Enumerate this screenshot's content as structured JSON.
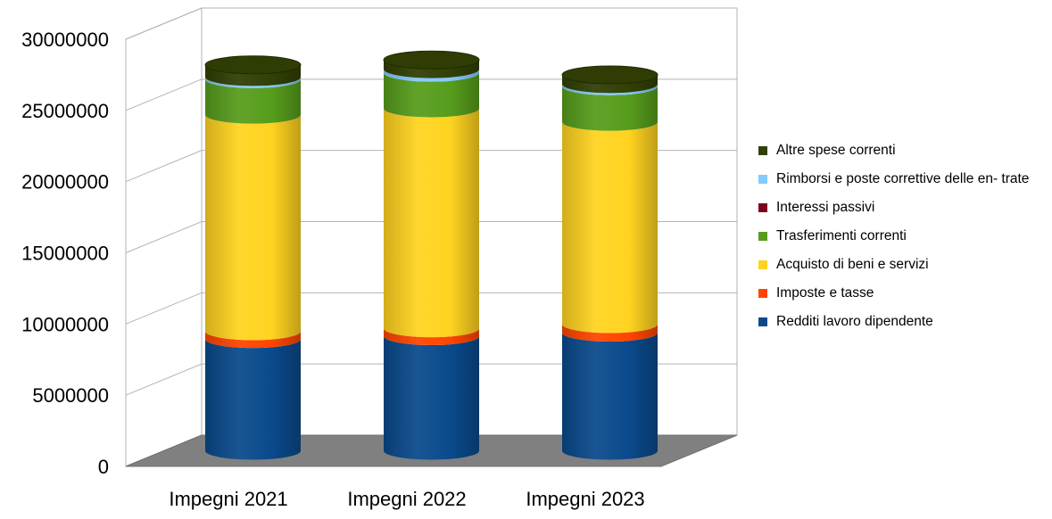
{
  "chart_data": {
    "type": "bar",
    "stacked": true,
    "three_d": true,
    "bar_shape": "cylinder",
    "categories": [
      "Impegni 2021",
      "Impegni 2022",
      "Impegni 2023"
    ],
    "series": [
      {
        "name": "Redditi lavoro dipendente",
        "color": "#0a4a8c",
        "values": [
          7850000,
          8050000,
          8300000
        ]
      },
      {
        "name": "Imposte e tasse",
        "color": "#ff4500",
        "values": [
          550000,
          550000,
          600000
        ]
      },
      {
        "name": "Acquisto di beni e servizi",
        "color": "#ffd320",
        "values": [
          15200000,
          15450000,
          14200000
        ]
      },
      {
        "name": "Trasferimenti correnti",
        "color": "#579d1c",
        "values": [
          2500000,
          2500000,
          2500000
        ]
      },
      {
        "name": "Interessi passivi",
        "color": "#7e0021",
        "values": [
          0,
          0,
          0
        ]
      },
      {
        "name": "Rimborsi e poste correttive delle en- trate",
        "color": "#83caff",
        "values": [
          150000,
          250000,
          150000
        ]
      },
      {
        "name": "Altre spese correnti",
        "color": "#314004",
        "values": [
          850000,
          650000,
          650000
        ]
      }
    ],
    "ylim": [
      0,
      30000000
    ],
    "yticks": [
      "0",
      "5000000",
      "10000000",
      "15000000",
      "20000000",
      "25000000",
      "30000000"
    ],
    "grid": true,
    "legend_position": "right",
    "floor_color": "#808080",
    "title": "",
    "xlabel": "",
    "ylabel": ""
  }
}
